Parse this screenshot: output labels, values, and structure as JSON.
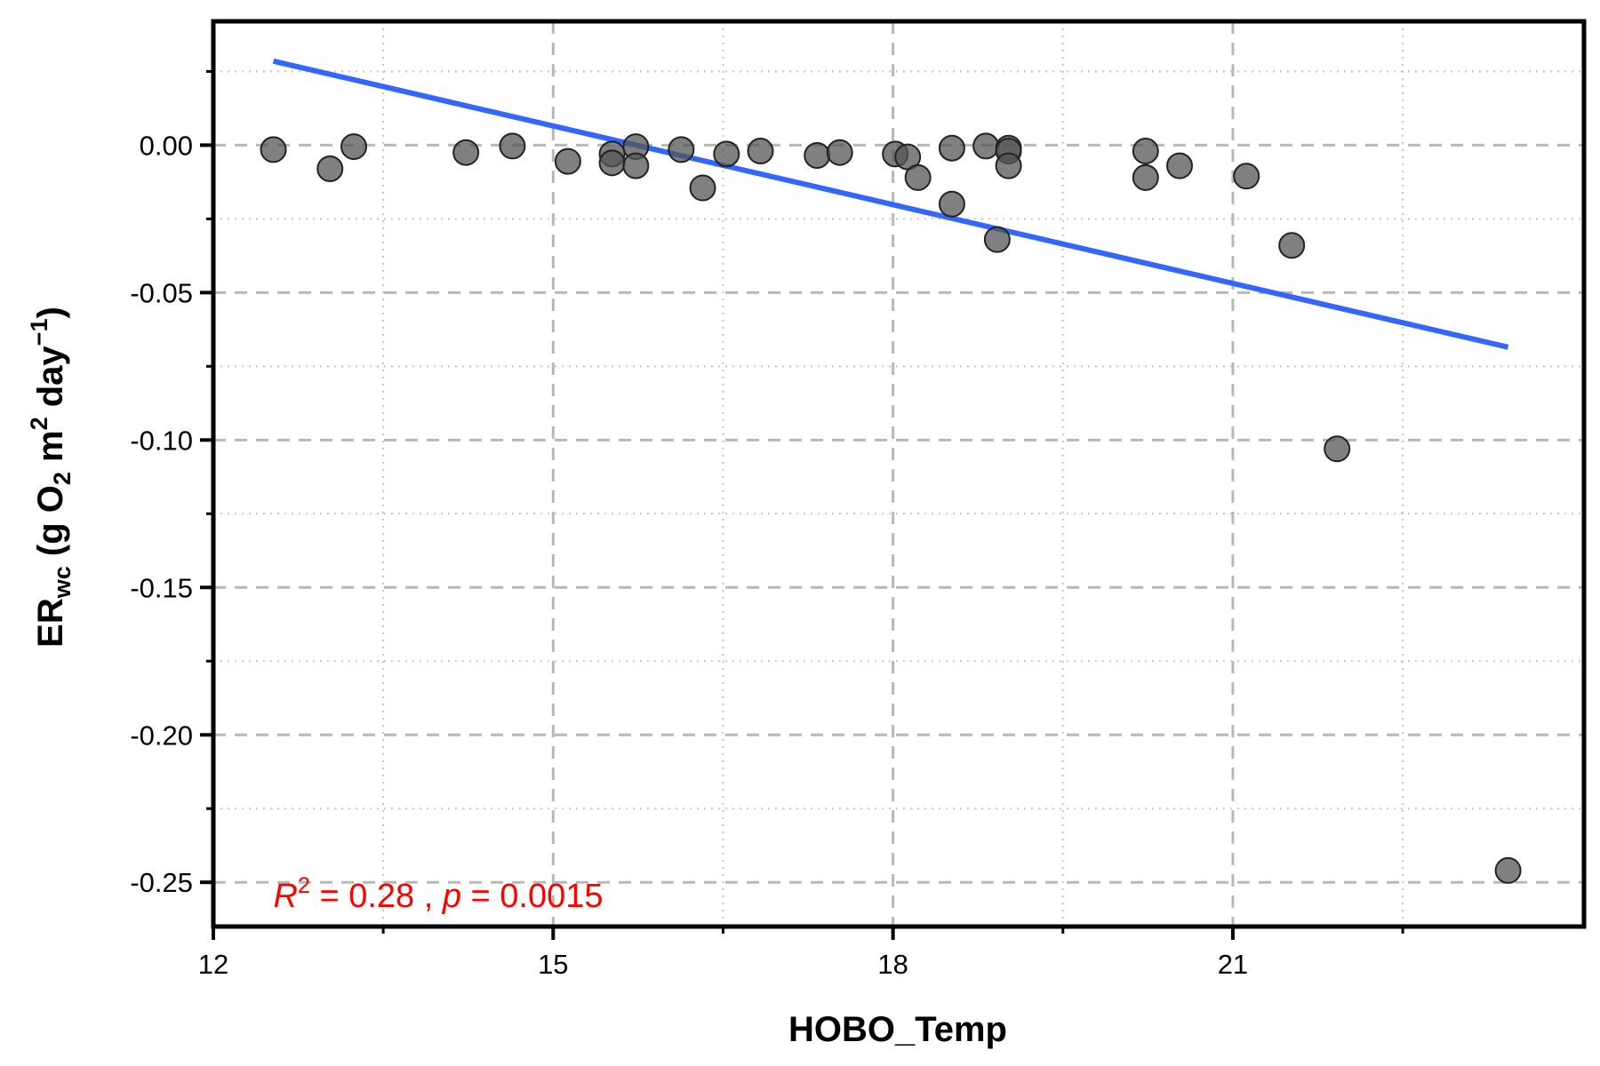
{
  "chart_data": {
    "type": "scatter",
    "x_label": "HOBO_Temp",
    "y_label": {
      "prefix": "ER",
      "prefix_sub": "wc",
      "open": " (g O",
      "o2_sub": "2",
      "m": " m",
      "m_sup": "2",
      "day": " day",
      "day_sup": "−1",
      "close": ")"
    },
    "xlim": [
      12,
      24.1
    ],
    "ylim": [
      -0.265,
      0.042
    ],
    "x_ticks": [
      12,
      15,
      18,
      21
    ],
    "x_tick_labels": [
      "12",
      "15",
      "18",
      "21"
    ],
    "x_minor_ticks": [
      13.5,
      16.5,
      19.5,
      22.5
    ],
    "y_ticks": [
      0.0,
      -0.05,
      -0.1,
      -0.15,
      -0.2,
      -0.25
    ],
    "y_tick_labels": [
      "0.00",
      "-0.05",
      "-0.10",
      "-0.15",
      "-0.20",
      "-0.25"
    ],
    "y_minor_ticks": [
      0.025,
      -0.025,
      -0.075,
      -0.125,
      -0.175,
      -0.225
    ],
    "grid": true,
    "points": [
      {
        "x": 12.53,
        "y": -0.0015
      },
      {
        "x": 13.03,
        "y": -0.008
      },
      {
        "x": 13.24,
        "y": -0.0005
      },
      {
        "x": 14.23,
        "y": -0.0025
      },
      {
        "x": 14.64,
        "y": -0.0003
      },
      {
        "x": 15.13,
        "y": -0.0055
      },
      {
        "x": 15.52,
        "y": -0.003
      },
      {
        "x": 15.52,
        "y": -0.006
      },
      {
        "x": 15.73,
        "y": -0.0005
      },
      {
        "x": 15.73,
        "y": -0.007
      },
      {
        "x": 16.13,
        "y": -0.0015
      },
      {
        "x": 16.32,
        "y": -0.0145
      },
      {
        "x": 16.53,
        "y": -0.003
      },
      {
        "x": 16.83,
        "y": -0.002
      },
      {
        "x": 17.33,
        "y": -0.0035
      },
      {
        "x": 17.53,
        "y": -0.0025
      },
      {
        "x": 18.02,
        "y": -0.003
      },
      {
        "x": 18.13,
        "y": -0.004
      },
      {
        "x": 18.22,
        "y": -0.011
      },
      {
        "x": 18.52,
        "y": -0.001
      },
      {
        "x": 18.52,
        "y": -0.02
      },
      {
        "x": 18.82,
        "y": -0.0003
      },
      {
        "x": 18.92,
        "y": -0.032
      },
      {
        "x": 19.02,
        "y": -0.001
      },
      {
        "x": 19.02,
        "y": -0.002
      },
      {
        "x": 19.02,
        "y": -0.007
      },
      {
        "x": 20.23,
        "y": -0.002
      },
      {
        "x": 20.23,
        "y": -0.011
      },
      {
        "x": 20.53,
        "y": -0.007
      },
      {
        "x": 21.12,
        "y": -0.0105
      },
      {
        "x": 21.52,
        "y": -0.034
      },
      {
        "x": 21.92,
        "y": -0.103
      },
      {
        "x": 23.43,
        "y": -0.246
      }
    ],
    "fit_line": {
      "x": [
        12.53,
        23.43
      ],
      "y": [
        0.0285,
        -0.0685
      ]
    },
    "annotation": {
      "r_label": "R",
      "r_sup": "2",
      "r_value": " = 0.28 , ",
      "p_label": "p",
      "p_value": " = 0.0015",
      "x": 12.53,
      "y": -0.2545
    },
    "colors": {
      "point_fill": "#555555",
      "point_stroke": "#222222",
      "fit_line": "#3366ff",
      "major_grid": "#b8b8b8",
      "minor_grid": "#c4c4c4",
      "annotation": "#ff0000",
      "axis": "#000000"
    }
  }
}
